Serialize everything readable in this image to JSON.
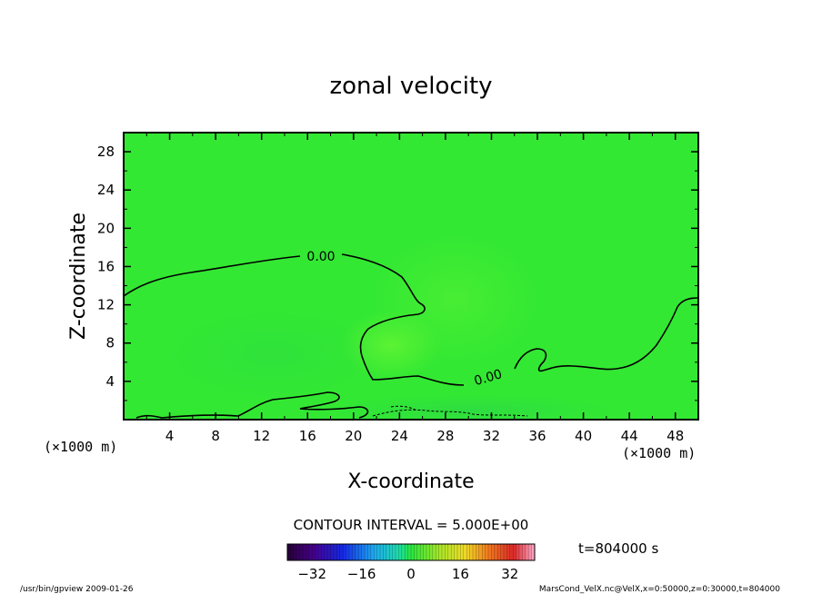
{
  "chart_data": {
    "type": "heatmap",
    "title": "zonal velocity",
    "xlabel": "X-coordinate",
    "ylabel": "Z-coordinate",
    "x_unit": "(×1000 m)",
    "y_unit": "(×1000 m)",
    "xlim": [
      0,
      50
    ],
    "ylim": [
      0,
      30
    ],
    "x_ticks": [
      4,
      8,
      12,
      16,
      20,
      24,
      28,
      32,
      36,
      40,
      44,
      48
    ],
    "y_ticks": [
      4,
      8,
      12,
      16,
      20,
      24,
      28
    ],
    "field_color": "#33e833",
    "contour_labels": [
      "0.00",
      "0.00"
    ],
    "contour_interval": "CONTOUR INTERVAL = 5.000E+00",
    "time_label": "t=804000 s",
    "colorbar": {
      "ticks": [
        -32,
        -16,
        0,
        16,
        32
      ],
      "range": [
        -40,
        40
      ],
      "colormap": "rainbow"
    }
  },
  "footer": {
    "left": "/usr/bin/gpview  2009-01-26",
    "right": "MarsCond_VelX.nc@VelX,x=0:50000,z=0:30000,t=804000"
  }
}
